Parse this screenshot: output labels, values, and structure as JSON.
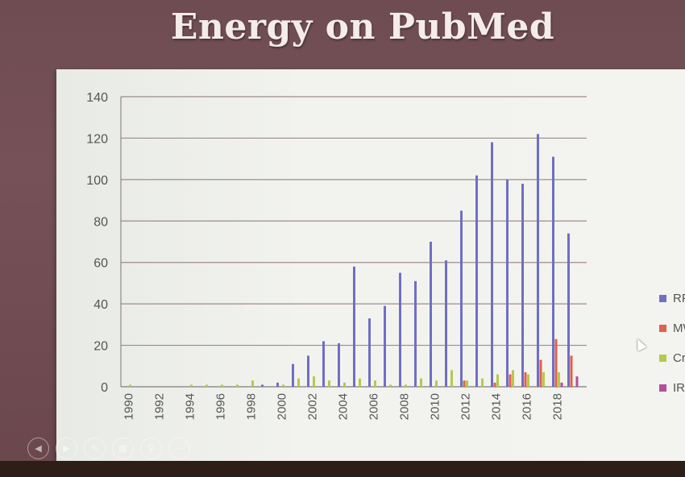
{
  "slide": {
    "title": "Energy on PubMed"
  },
  "colors": {
    "RFA": "#6f6fc4",
    "MWA": "#e0604a",
    "Cryo": "#b5c94a",
    "IRE": "#b64d9c"
  },
  "legend": [
    {
      "name": "RFA",
      "color": "#6f6fc4"
    },
    {
      "name": "MWA",
      "color": "#e0604a"
    },
    {
      "name": "Cryo",
      "color": "#b5c94a"
    },
    {
      "name": "IRE",
      "color": "#b64d9c"
    }
  ],
  "controls": [
    "prev-icon",
    "next-icon",
    "pen-icon",
    "slides-icon",
    "zoom-icon",
    "more-icon"
  ],
  "chart_data": {
    "type": "bar",
    "title": "",
    "xlabel": "",
    "ylabel": "",
    "ylim": [
      0,
      140
    ],
    "yticks": [
      0,
      20,
      40,
      60,
      80,
      100,
      120,
      140
    ],
    "grid": true,
    "legend_position": "right",
    "categories": [
      "1990",
      "1991",
      "1992",
      "1993",
      "1994",
      "1995",
      "1996",
      "1997",
      "1998",
      "1999",
      "2000",
      "2001",
      "2002",
      "2003",
      "2004",
      "2005",
      "2006",
      "2007",
      "2008",
      "2009",
      "2010",
      "2011",
      "2012",
      "2013",
      "2014",
      "2015",
      "2016",
      "2017",
      "2018",
      "2019"
    ],
    "tick_labels": [
      "1990",
      "1992",
      "1994",
      "1996",
      "1998",
      "2000",
      "2002",
      "2004",
      "2006",
      "2008",
      "2010",
      "2012",
      "2014",
      "2016",
      "2018"
    ],
    "series": [
      {
        "name": "RFA",
        "values": [
          0,
          0,
          0,
          0,
          0,
          0,
          0,
          0,
          0,
          1,
          2,
          11,
          15,
          22,
          21,
          58,
          33,
          39,
          55,
          51,
          70,
          61,
          85,
          102,
          118,
          100,
          98,
          122,
          111,
          74
        ]
      },
      {
        "name": "MWA",
        "values": [
          0,
          0,
          0,
          0,
          0,
          0,
          0,
          0,
          0,
          0,
          0,
          0,
          0,
          0,
          0,
          0,
          0,
          0,
          0,
          0,
          0,
          0,
          3,
          0,
          2,
          6,
          7,
          13,
          23,
          15
        ]
      },
      {
        "name": "Cryo",
        "values": [
          1,
          0,
          0,
          0,
          1,
          1,
          1,
          1,
          3,
          0,
          1,
          4,
          5,
          3,
          2,
          4,
          3,
          1,
          1,
          4,
          3,
          8,
          3,
          4,
          6,
          8,
          6,
          7,
          7,
          0
        ]
      },
      {
        "name": "IRE",
        "values": [
          0,
          0,
          0,
          0,
          0,
          0,
          0,
          0,
          0,
          0,
          0,
          0,
          0,
          0,
          0,
          0,
          0,
          0,
          0,
          0,
          0,
          0,
          0,
          0,
          0,
          0,
          0,
          0,
          2,
          5
        ]
      }
    ]
  }
}
